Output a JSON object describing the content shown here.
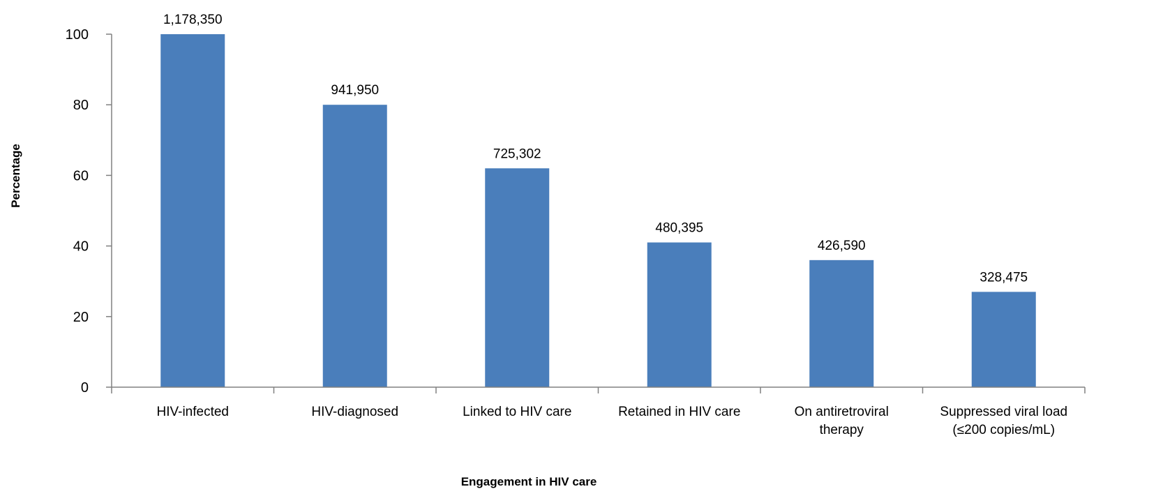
{
  "chart_data": {
    "type": "bar",
    "categories": [
      [
        "HIV-infected"
      ],
      [
        "HIV-diagnosed"
      ],
      [
        "Linked to HIV care"
      ],
      [
        "Retained in HIV care"
      ],
      [
        "On antiretroviral",
        "therapy"
      ],
      [
        "Suppressed viral load",
        "(≤200 copies/mL)"
      ]
    ],
    "values": [
      100,
      80,
      62,
      41,
      36,
      27
    ],
    "data_labels": [
      "1,178,350",
      "941,950",
      "725,302",
      "480,395",
      "426,590",
      "328,475"
    ],
    "xlabel": "Engagement in HIV care",
    "ylabel": "Percentage",
    "ylim": [
      0,
      100
    ],
    "yticks": [
      0,
      20,
      40,
      60,
      80,
      100
    ],
    "grid": false,
    "legend": "none",
    "bar_color": "#4a7ebb"
  }
}
